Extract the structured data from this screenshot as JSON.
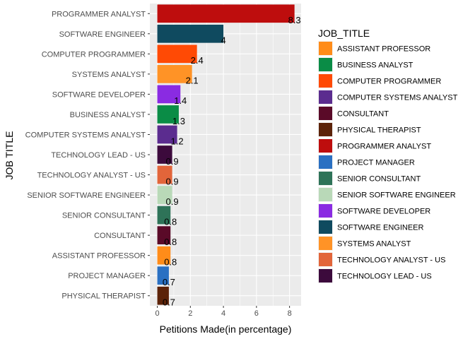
{
  "chart_data": {
    "type": "bar",
    "orientation": "horizontal",
    "xlabel": "Petitions Made(in percentage)",
    "ylabel": "JOB TITLE",
    "xlim": [
      -0.45,
      8.7
    ],
    "x_ticks": [
      0,
      2,
      4,
      6,
      8
    ],
    "grid": true,
    "legend_position": "right",
    "legend_title": "JOB_TITLE",
    "categories": [
      "PROGRAMMER ANALYST",
      "SOFTWARE ENGINEER",
      "COMPUTER PROGRAMMER",
      "SYSTEMS ANALYST",
      "SOFTWARE DEVELOPER",
      "BUSINESS ANALYST",
      "COMPUTER SYSTEMS ANALYST",
      "TECHNOLOGY LEAD - US",
      "TECHNOLOGY ANALYST - US",
      "SENIOR SOFTWARE ENGINEER",
      "SENIOR CONSULTANT",
      "CONSULTANT",
      "ASSISTANT PROFESSOR",
      "PROJECT MANAGER",
      "PHYSICAL THERAPIST"
    ],
    "values": [
      8.3,
      4.0,
      2.4,
      2.1,
      1.4,
      1.3,
      1.2,
      0.9,
      0.9,
      0.9,
      0.8,
      0.8,
      0.8,
      0.7,
      0.7
    ],
    "data_labels": [
      "8.3",
      "4",
      "2.4",
      "2.1",
      "1.4",
      "1.3",
      "1.2",
      "0.9",
      "0.9",
      "0.9",
      "0.8",
      "0.8",
      "0.8",
      "0.7",
      "0.7"
    ],
    "legend": [
      {
        "label": "ASSISTANT PROFESSOR",
        "color": "#FF8C19"
      },
      {
        "label": "BUSINESS ANALYST",
        "color": "#0A8C46"
      },
      {
        "label": "COMPUTER PROGRAMMER",
        "color": "#FF4A05"
      },
      {
        "label": "COMPUTER SYSTEMS ANALYST",
        "color": "#5B2C8F"
      },
      {
        "label": "CONSULTANT",
        "color": "#5A0A28"
      },
      {
        "label": "PHYSICAL THERAPIST",
        "color": "#5C2309"
      },
      {
        "label": "PROGRAMMER ANALYST",
        "color": "#BE0D0D"
      },
      {
        "label": "PROJECT MANAGER",
        "color": "#2A70C2"
      },
      {
        "label": "SENIOR CONSULTANT",
        "color": "#2E7358"
      },
      {
        "label": "SENIOR SOFTWARE ENGINEER",
        "color": "#B9D9B8"
      },
      {
        "label": "SOFTWARE DEVELOPER",
        "color": "#8A2BE2"
      },
      {
        "label": "SOFTWARE ENGINEER",
        "color": "#0F4A5F"
      },
      {
        "label": "SYSTEMS ANALYST",
        "color": "#FF9326"
      },
      {
        "label": "TECHNOLOGY ANALYST - US",
        "color": "#E2653A"
      },
      {
        "label": "TECHNOLOGY LEAD - US",
        "color": "#3C0A3C"
      }
    ]
  }
}
